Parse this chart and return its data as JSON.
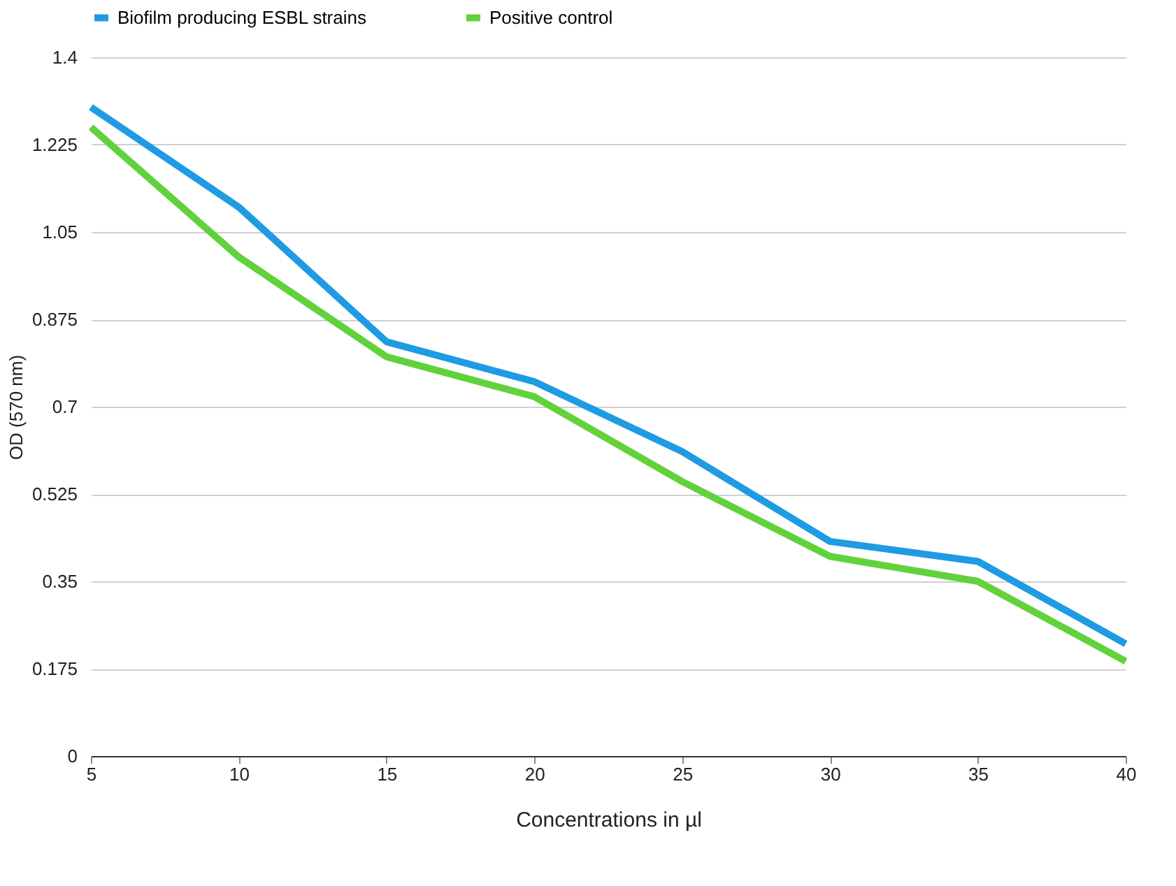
{
  "chart_data": {
    "type": "line",
    "xlabel": "Concentrations in µl",
    "ylabel": "OD (570 nm)",
    "x": [
      5,
      10,
      15,
      20,
      25,
      30,
      35,
      40
    ],
    "series": [
      {
        "name": "Biofilm producing ESBL strains",
        "color": "#1e9be3",
        "values": [
          1.3,
          1.1,
          0.83,
          0.75,
          0.61,
          0.43,
          0.39,
          0.225
        ]
      },
      {
        "name": "Positive control",
        "color": "#62d23c",
        "values": [
          1.26,
          1.0,
          0.8,
          0.72,
          0.55,
          0.4,
          0.35,
          0.19
        ]
      }
    ],
    "xlim": [
      5,
      40
    ],
    "xticks": [
      5,
      10,
      15,
      20,
      25,
      30,
      35,
      40
    ],
    "ylim": [
      0,
      1.4
    ],
    "yticks": [
      0,
      0.175,
      0.35,
      0.525,
      0.7,
      0.875,
      1.05,
      1.225,
      1.4
    ],
    "grid": "y",
    "legend": "top",
    "marker": "none",
    "line_style": "solid"
  }
}
